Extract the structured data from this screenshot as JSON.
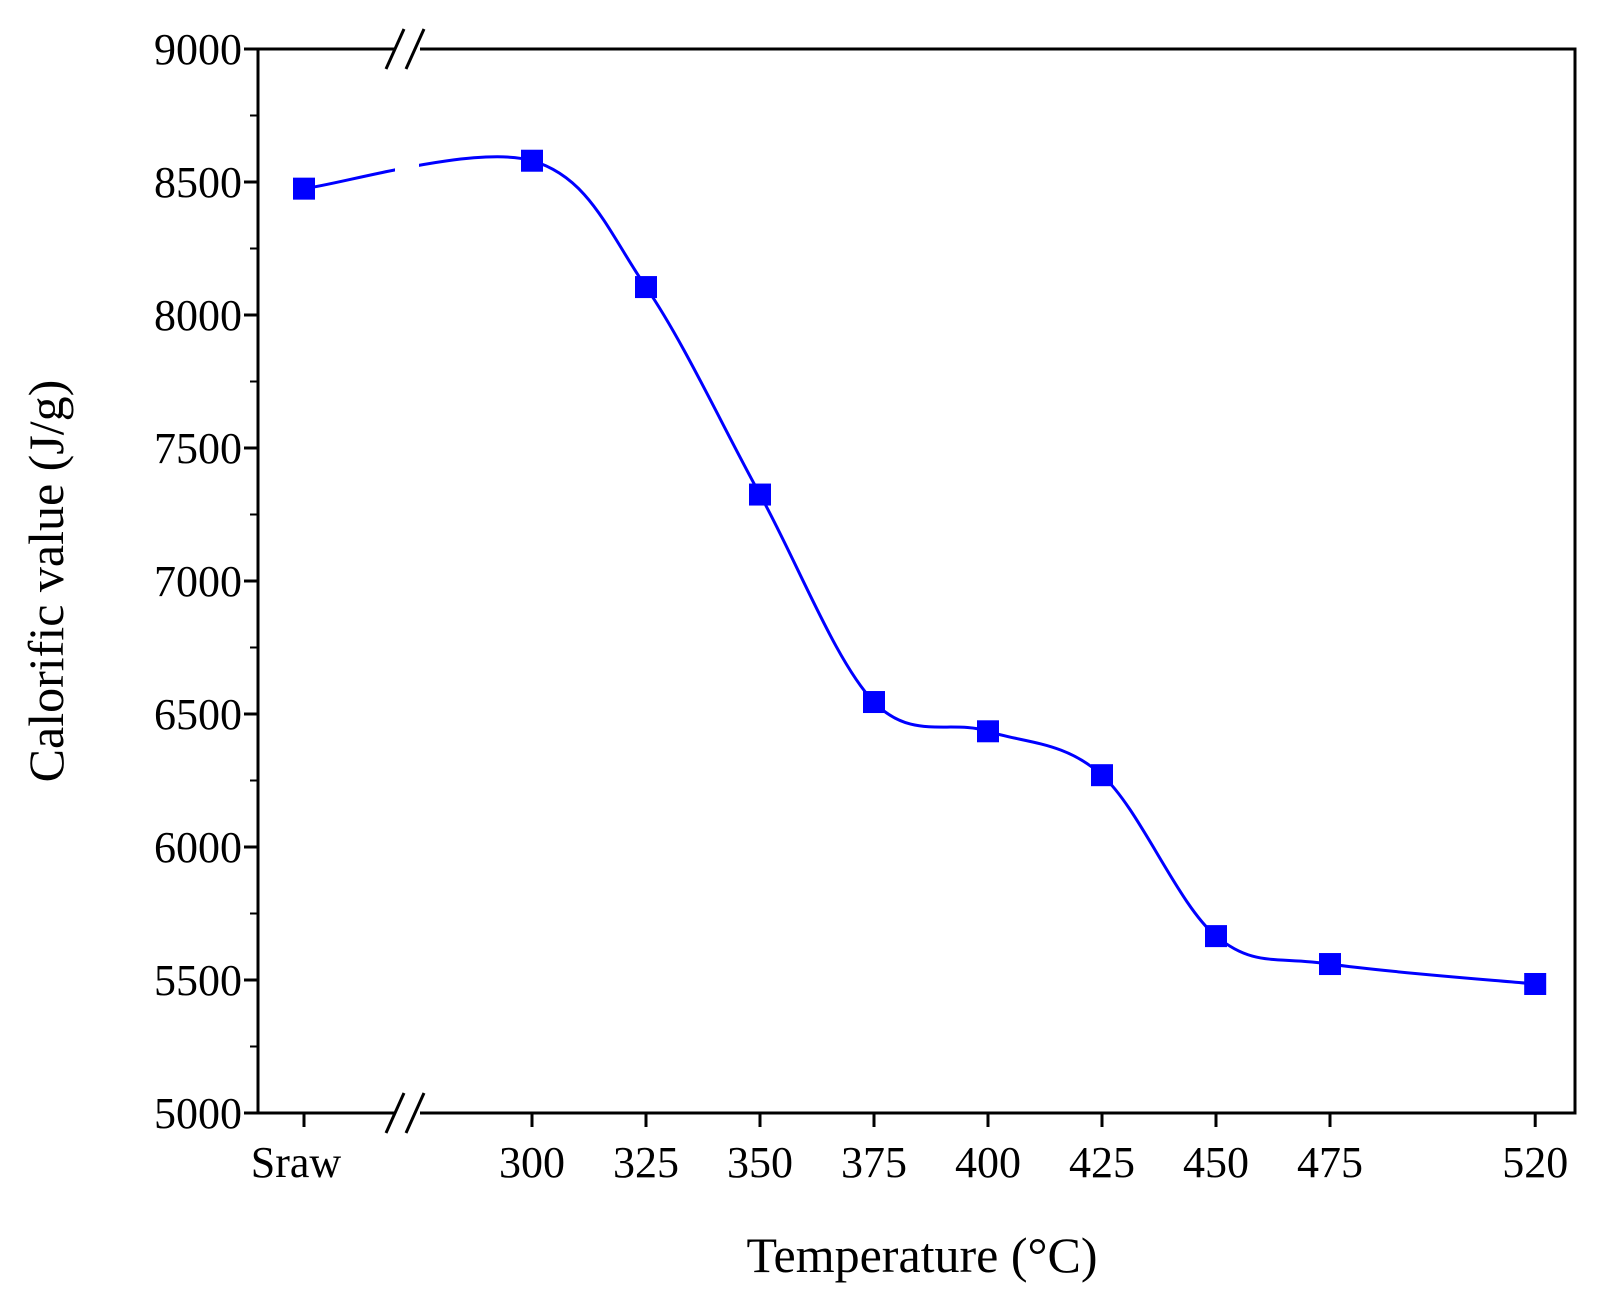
{
  "chart_data": {
    "type": "line",
    "title": "",
    "xlabel": "Temperature (°C)",
    "ylabel": "Calorific value (J/g)",
    "ylim": [
      5000,
      9000
    ],
    "y_ticks": [
      5000,
      5500,
      6000,
      6500,
      7000,
      7500,
      8000,
      8500,
      9000
    ],
    "x_categories": [
      "Sraw",
      "300",
      "325",
      "350",
      "375",
      "400",
      "425",
      "450",
      "475",
      "520"
    ],
    "axis_break": "between Sraw and 300",
    "grid": false,
    "legend": "none",
    "series": [
      {
        "color": "#0000ff",
        "marker": "square",
        "x": [
          "Sraw",
          300,
          325,
          350,
          375,
          400,
          425,
          450,
          475,
          520
        ],
        "values": [
          8475,
          8580,
          8105,
          7325,
          6545,
          6435,
          6270,
          5665,
          5560,
          5485
        ]
      }
    ]
  }
}
